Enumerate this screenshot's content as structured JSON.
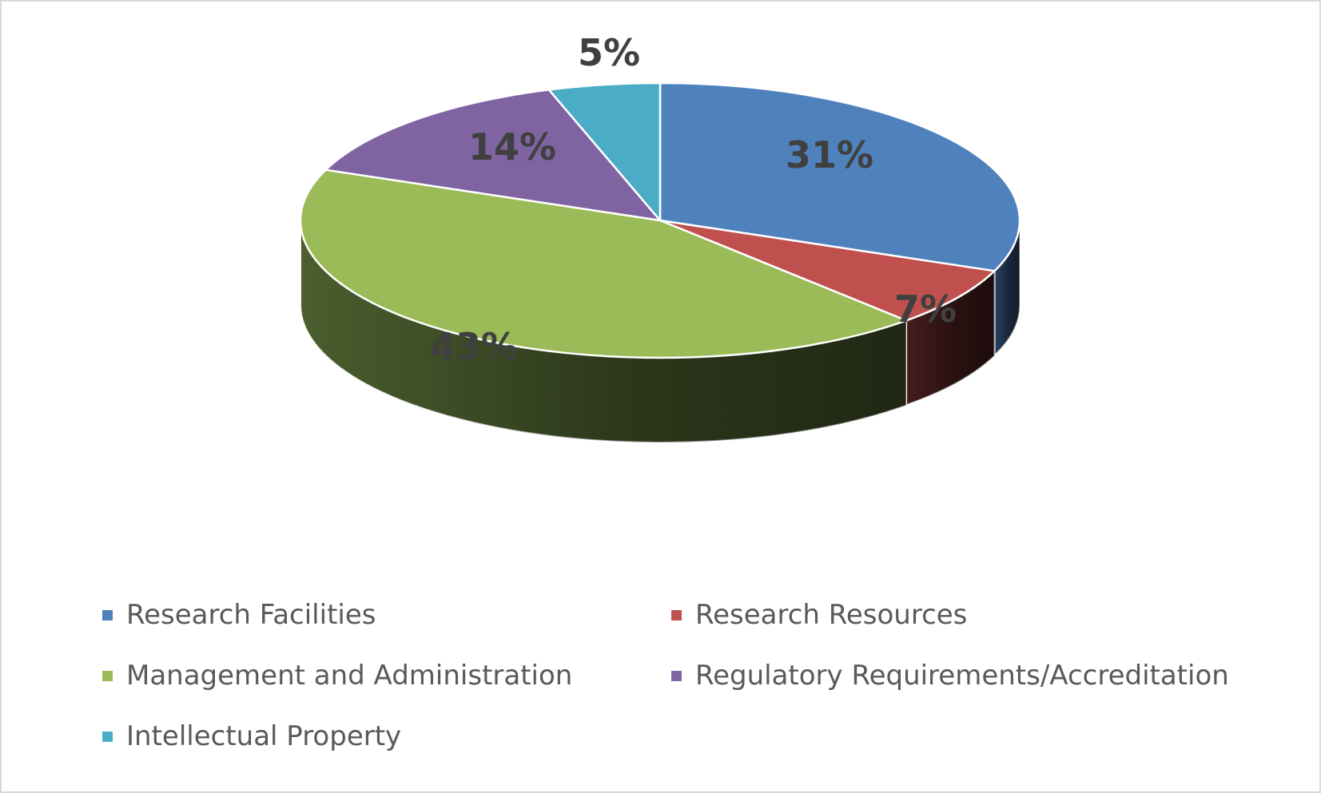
{
  "chart_data": {
    "type": "pie",
    "three_d": true,
    "title": "",
    "legend_position": "bottom",
    "slices": [
      {
        "label": "Research Facilities",
        "value": 31,
        "display": "31%",
        "color": "#4f81bd",
        "side_color": "#2b4768"
      },
      {
        "label": "Research Resources",
        "value": 7,
        "display": "7%",
        "color": "#c0504d",
        "side_color": "#4a1e1e"
      },
      {
        "label": "Management and Administration",
        "value": 43,
        "display": "43%",
        "color": "#9bbb59",
        "side_color": "#4f6330"
      },
      {
        "label": "Regulatory Requirements/Accreditation",
        "value": 14,
        "display": "14%",
        "color": "#8064a2",
        "side_color": "#45365a"
      },
      {
        "label": "Intellectual Property",
        "value": 5,
        "display": "5%",
        "color": "#4bacc6",
        "side_color": "#2a6070"
      }
    ]
  }
}
